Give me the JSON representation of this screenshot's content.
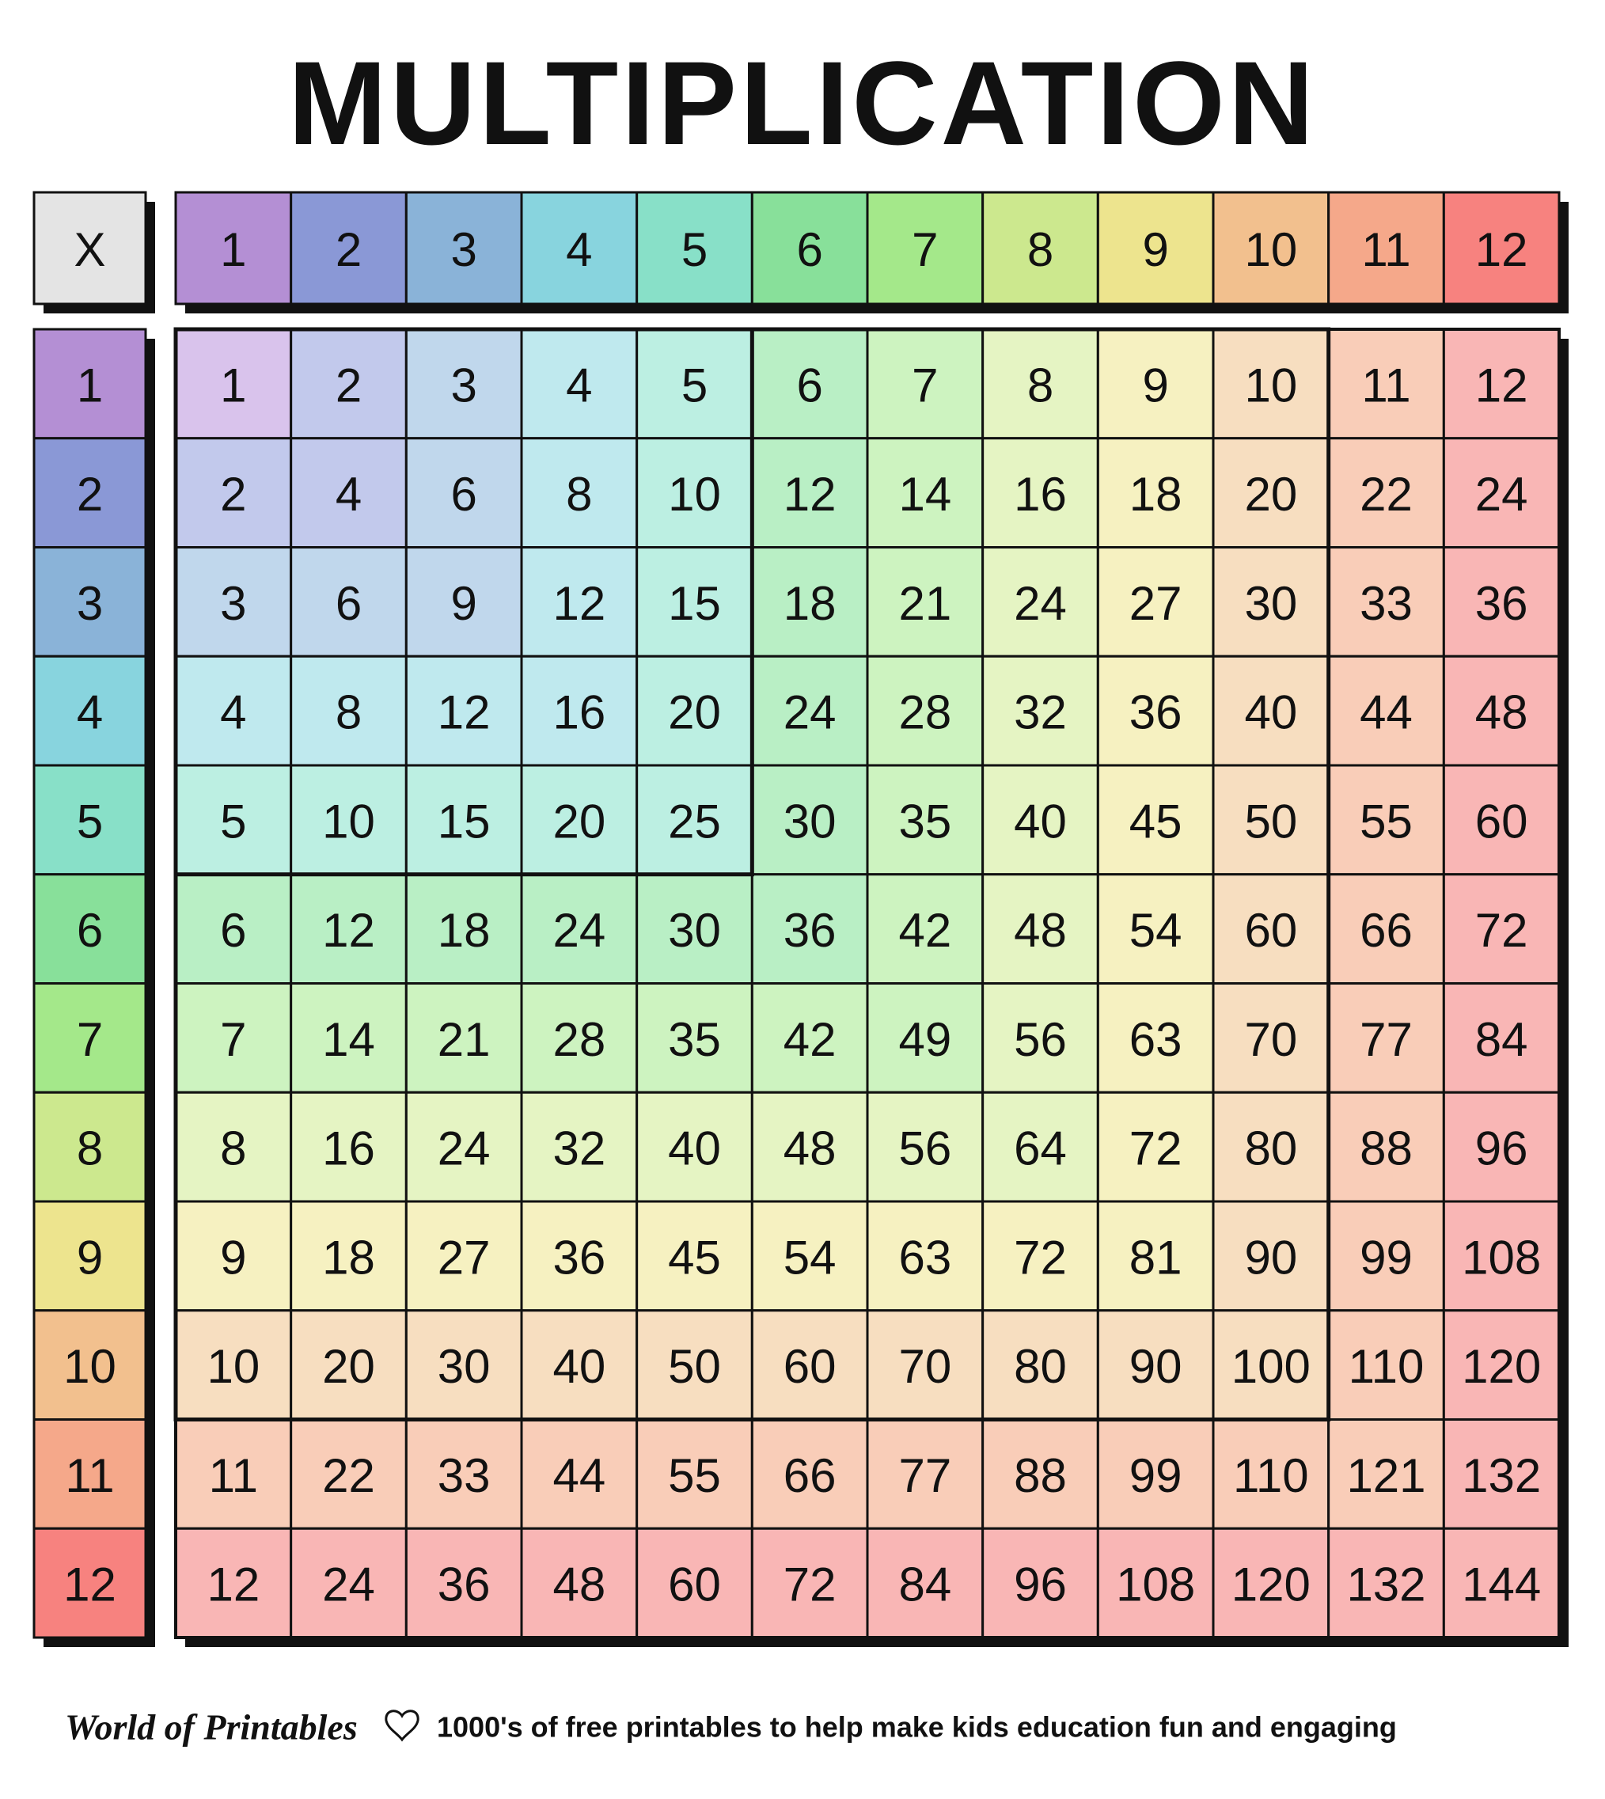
{
  "header": {
    "title": "MULTIPLICATION"
  },
  "table": {
    "corner": "X",
    "columns": [
      1,
      2,
      3,
      4,
      5,
      6,
      7,
      8,
      9,
      10,
      11,
      12
    ],
    "rows": [
      {
        "header": 1,
        "cells": [
          1,
          2,
          3,
          4,
          5,
          6,
          7,
          8,
          9,
          10,
          11,
          12
        ]
      },
      {
        "header": 2,
        "cells": [
          2,
          4,
          6,
          8,
          10,
          12,
          14,
          16,
          18,
          20,
          22,
          24
        ]
      },
      {
        "header": 3,
        "cells": [
          3,
          6,
          9,
          12,
          15,
          18,
          21,
          24,
          27,
          30,
          33,
          36
        ]
      },
      {
        "header": 4,
        "cells": [
          4,
          8,
          12,
          16,
          20,
          24,
          28,
          32,
          36,
          40,
          44,
          48
        ]
      },
      {
        "header": 5,
        "cells": [
          5,
          10,
          15,
          20,
          25,
          30,
          35,
          40,
          45,
          50,
          55,
          60
        ]
      },
      {
        "header": 6,
        "cells": [
          6,
          12,
          18,
          24,
          30,
          36,
          42,
          48,
          54,
          60,
          66,
          72
        ]
      },
      {
        "header": 7,
        "cells": [
          7,
          14,
          21,
          28,
          35,
          42,
          49,
          56,
          63,
          70,
          77,
          84
        ]
      },
      {
        "header": 8,
        "cells": [
          8,
          16,
          24,
          32,
          40,
          48,
          56,
          64,
          72,
          80,
          88,
          96
        ]
      },
      {
        "header": 9,
        "cells": [
          9,
          18,
          27,
          36,
          45,
          54,
          63,
          72,
          81,
          90,
          99,
          108
        ]
      },
      {
        "header": 10,
        "cells": [
          10,
          20,
          30,
          40,
          50,
          60,
          70,
          80,
          90,
          100,
          110,
          120
        ]
      },
      {
        "header": 11,
        "cells": [
          11,
          22,
          33,
          44,
          55,
          66,
          77,
          88,
          99,
          110,
          121,
          132
        ]
      },
      {
        "header": 12,
        "cells": [
          12,
          24,
          36,
          48,
          60,
          72,
          84,
          96,
          108,
          120,
          132,
          144
        ]
      }
    ]
  },
  "footer": {
    "brand": "World of Printables",
    "tagline": "1000's of free printables to help make kids education fun and engaging"
  }
}
